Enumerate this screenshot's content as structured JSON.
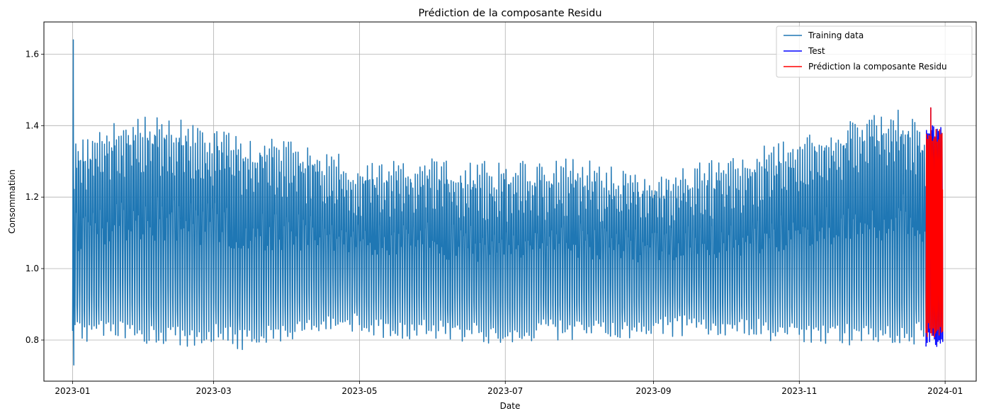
{
  "chart_data": {
    "type": "line",
    "title": "Prédiction de la composante Residu",
    "xlabel": "Date",
    "ylabel": "Consommation",
    "xlim": [
      "2022-12-20",
      "2024-01-14"
    ],
    "ylim": [
      0.685,
      1.69
    ],
    "grid": true,
    "legend_position": "top-right",
    "x_ticks": [
      "2023-01",
      "2023-03",
      "2023-05",
      "2023-07",
      "2023-09",
      "2023-11",
      "2024-01"
    ],
    "y_ticks": [
      0.8,
      1.0,
      1.2,
      1.4,
      1.6
    ],
    "series": [
      {
        "name": "Training data",
        "color": "#1f77b4",
        "x_range": [
          "2023-01-01",
          "2023-12-24"
        ],
        "y_range": [
          0.73,
          1.64
        ],
        "envelope": {
          "dates": [
            "2023-01-01",
            "2023-01-15",
            "2023-02-01",
            "2023-02-15",
            "2023-03-01",
            "2023-03-15",
            "2023-04-01",
            "2023-04-15",
            "2023-05-01",
            "2023-05-15",
            "2023-06-01",
            "2023-06-15",
            "2023-07-01",
            "2023-07-15",
            "2023-08-01",
            "2023-08-15",
            "2023-09-01",
            "2023-09-15",
            "2023-10-01",
            "2023-10-15",
            "2023-11-01",
            "2023-11-15",
            "2023-12-01",
            "2023-12-15",
            "2023-12-24"
          ],
          "upper": [
            1.35,
            1.4,
            1.43,
            1.42,
            1.4,
            1.37,
            1.36,
            1.33,
            1.31,
            1.3,
            1.31,
            1.3,
            1.3,
            1.3,
            1.31,
            1.29,
            1.27,
            1.29,
            1.31,
            1.34,
            1.38,
            1.4,
            1.43,
            1.45,
            1.38
          ],
          "lower": [
            0.79,
            0.8,
            0.79,
            0.78,
            0.79,
            0.77,
            0.8,
            0.82,
            0.82,
            0.8,
            0.8,
            0.79,
            0.79,
            0.8,
            0.8,
            0.8,
            0.81,
            0.81,
            0.8,
            0.8,
            0.79,
            0.79,
            0.78,
            0.78,
            0.8
          ]
        }
      },
      {
        "name": "Test",
        "color": "#0000ff",
        "x_range": [
          "2023-12-24",
          "2023-12-31"
        ],
        "y_range": [
          0.78,
          1.45
        ]
      },
      {
        "name": "Prédiction la composante Residu",
        "color": "#ff0000",
        "x_range": [
          "2023-12-24",
          "2023-12-31"
        ],
        "y_range": [
          0.79,
          1.45
        ]
      }
    ]
  }
}
